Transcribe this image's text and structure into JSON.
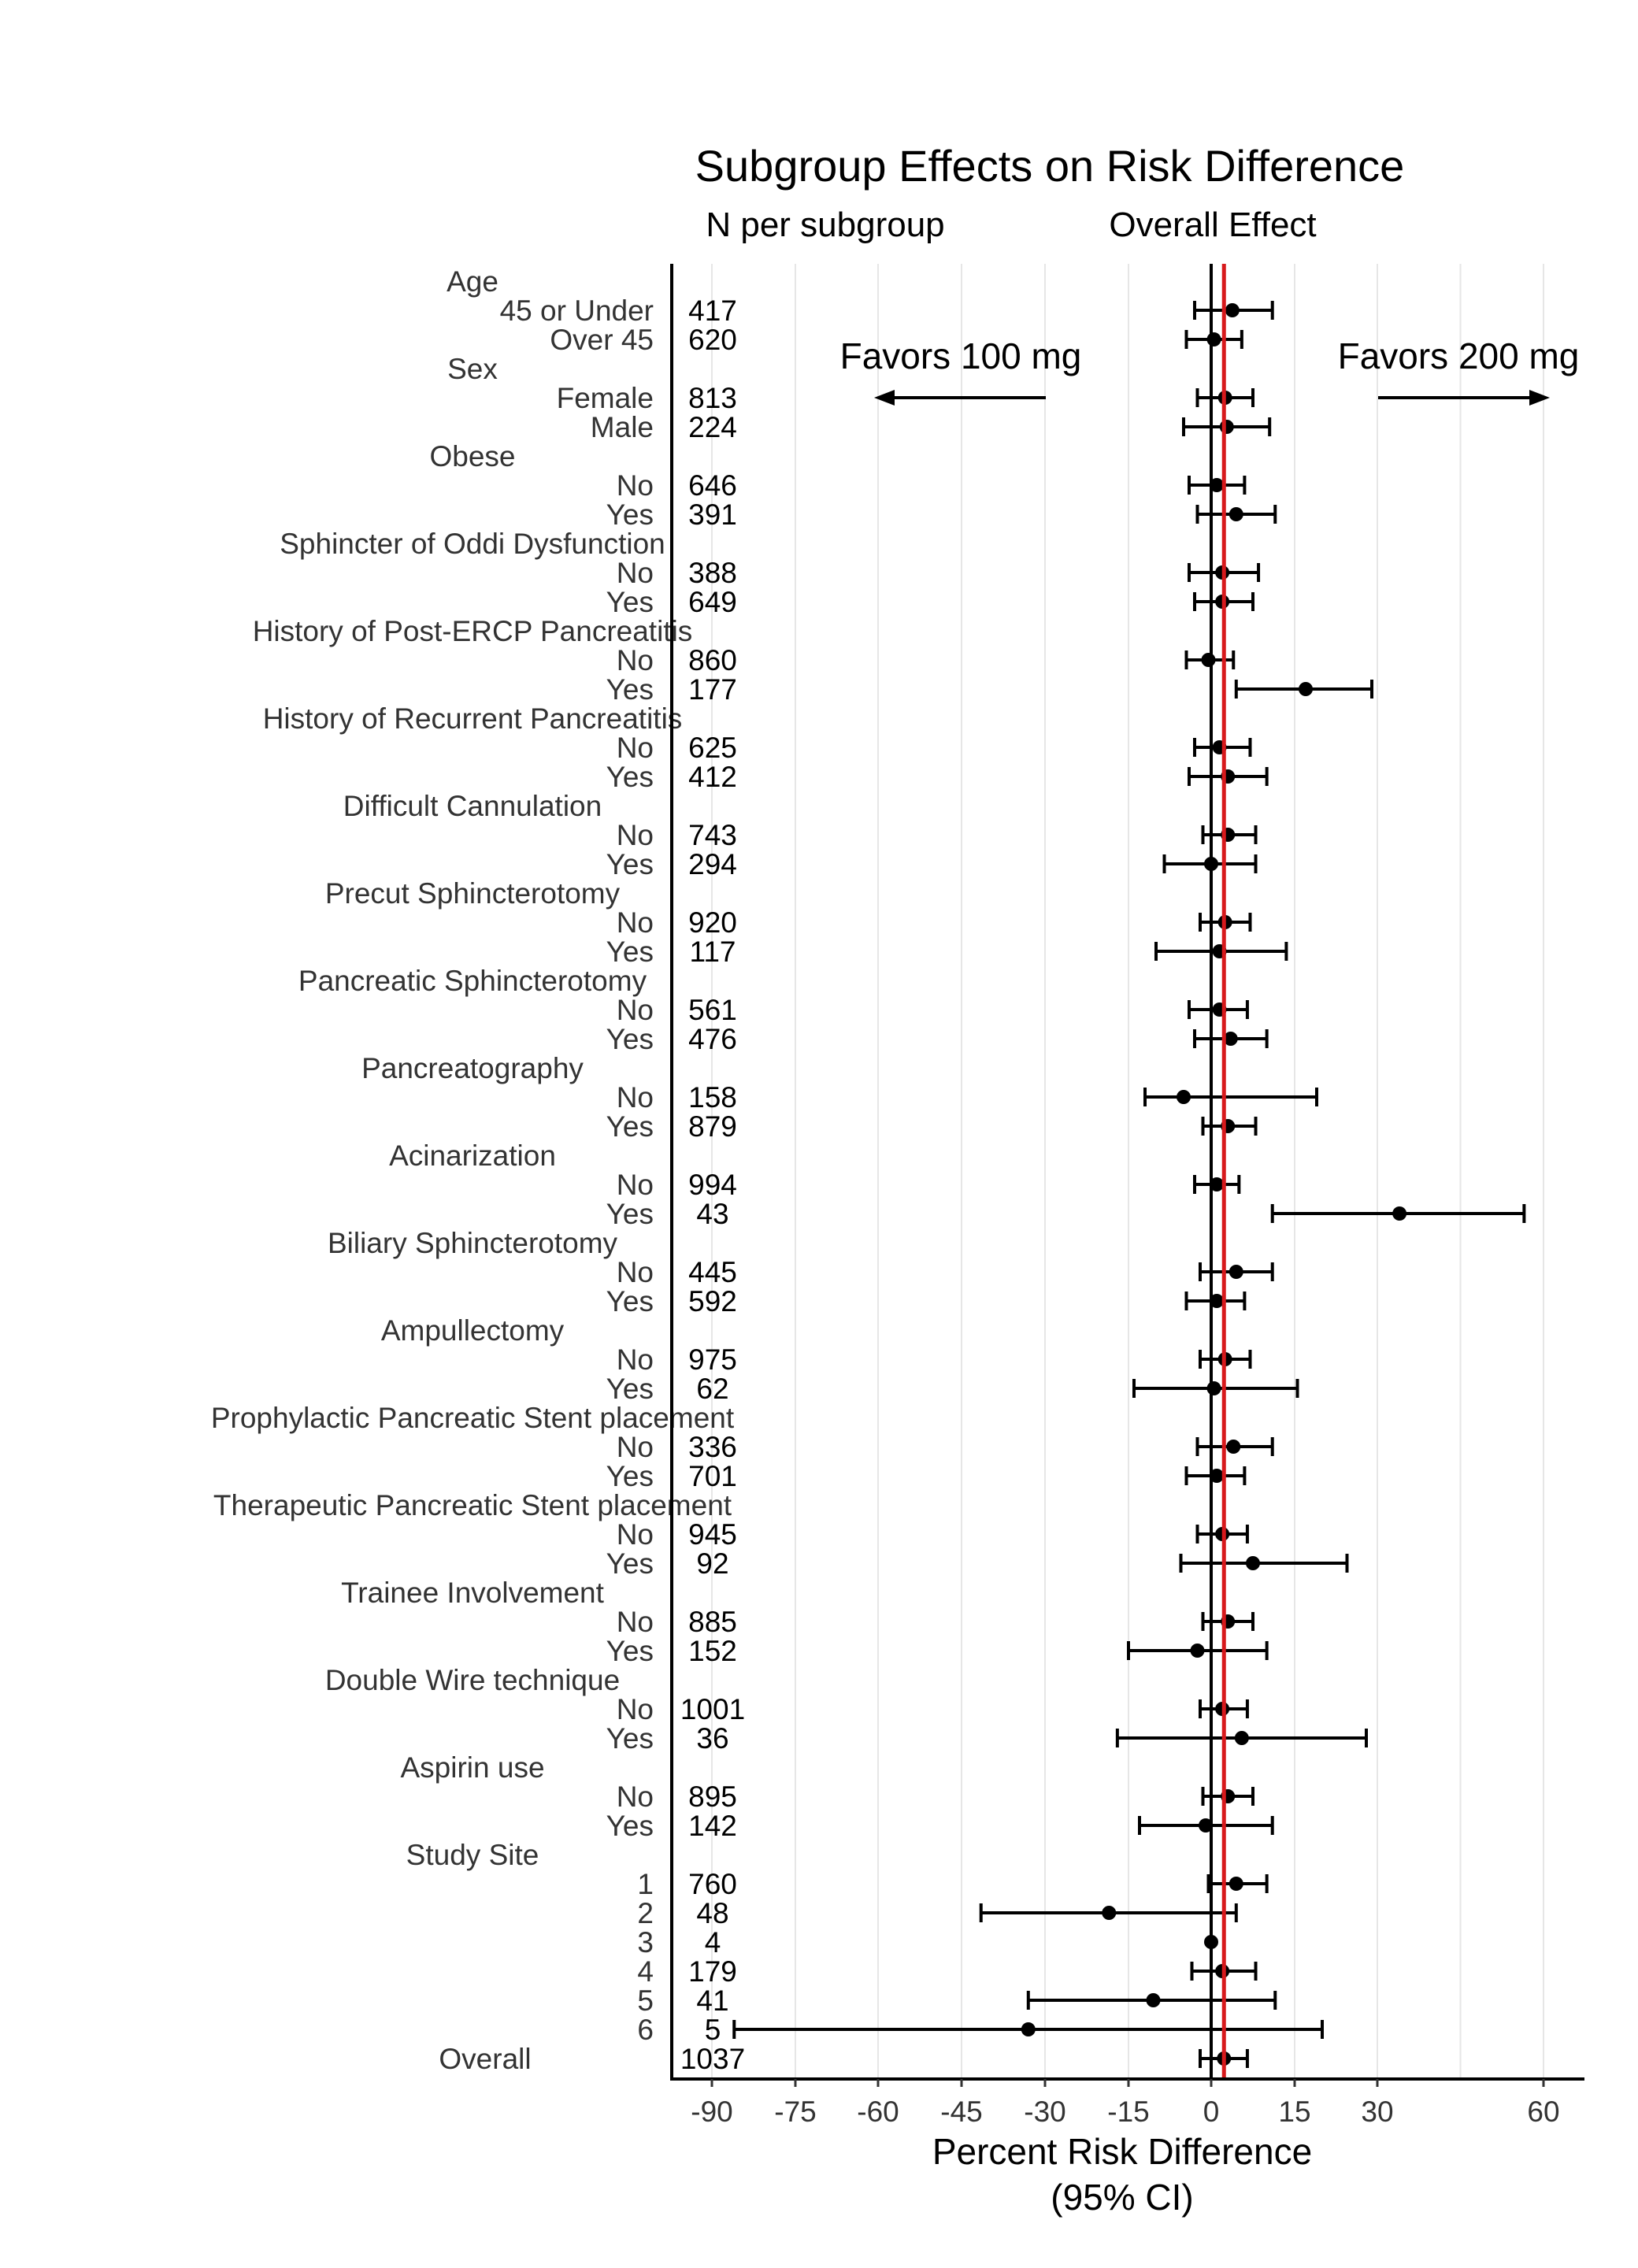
{
  "chart_data": {
    "type": "forest",
    "title": "Subgroup Effects on Risk Difference",
    "n_header": "N per subgroup",
    "overall_header": "Overall Effect",
    "xlabel_line1": "Percent Risk Difference",
    "xlabel_line2": "(95% CI)",
    "favors_left": "Favors 100 mg",
    "favors_right": "Favors 200 mg",
    "x_ticks": [
      -90,
      -75,
      -60,
      -45,
      -30,
      -15,
      0,
      15,
      30,
      60
    ],
    "x_tick_labels": [
      "-90",
      "-75",
      "-60",
      "-45",
      "-30",
      "-15",
      "0",
      "15",
      "30",
      "60"
    ],
    "overall_effect": 2.3,
    "overall_line_color": "#d7191c",
    "point_color": "#000000",
    "grid": true,
    "rows": [
      {
        "label": "Age",
        "header": true
      },
      {
        "label": "45 or Under",
        "n": "417",
        "est": 3.8,
        "lo": -3.0,
        "hi": 11.0
      },
      {
        "label": "Over 45",
        "n": "620",
        "est": 0.5,
        "lo": -4.5,
        "hi": 5.5
      },
      {
        "label": "Sex",
        "header": true
      },
      {
        "label": "Female",
        "n": "813",
        "est": 2.5,
        "lo": -2.5,
        "hi": 7.5
      },
      {
        "label": "Male",
        "n": "224",
        "est": 2.8,
        "lo": -5.0,
        "hi": 10.5
      },
      {
        "label": "Obese",
        "header": true
      },
      {
        "label": "No",
        "n": "646",
        "est": 1.0,
        "lo": -4.0,
        "hi": 6.0
      },
      {
        "label": "Yes",
        "n": "391",
        "est": 4.5,
        "lo": -2.5,
        "hi": 11.5
      },
      {
        "label": "Sphincter of Oddi Dysfunction",
        "header": true
      },
      {
        "label": "No",
        "n": "388",
        "est": 2.0,
        "lo": -4.0,
        "hi": 8.5
      },
      {
        "label": "Yes",
        "n": "649",
        "est": 2.0,
        "lo": -3.0,
        "hi": 7.5
      },
      {
        "label": "History of Post-ERCP Pancreatitis",
        "header": true
      },
      {
        "label": "No",
        "n": "860",
        "est": -0.5,
        "lo": -4.5,
        "hi": 4.0
      },
      {
        "label": "Yes",
        "n": "177",
        "est": 17.0,
        "lo": 4.5,
        "hi": 29.0
      },
      {
        "label": "History of Recurrent Pancreatitis",
        "header": true
      },
      {
        "label": "No",
        "n": "625",
        "est": 1.5,
        "lo": -3.0,
        "hi": 7.0
      },
      {
        "label": "Yes",
        "n": "412",
        "est": 3.0,
        "lo": -4.0,
        "hi": 10.0
      },
      {
        "label": "Difficult Cannulation",
        "header": true
      },
      {
        "label": "No",
        "n": "743",
        "est": 3.0,
        "lo": -1.5,
        "hi": 8.0
      },
      {
        "label": "Yes",
        "n": "294",
        "est": 0.0,
        "lo": -8.5,
        "hi": 8.0
      },
      {
        "label": "Precut Sphincterotomy",
        "header": true
      },
      {
        "label": "No",
        "n": "920",
        "est": 2.5,
        "lo": -2.0,
        "hi": 7.0
      },
      {
        "label": "Yes",
        "n": "117",
        "est": 1.5,
        "lo": -10.0,
        "hi": 13.5
      },
      {
        "label": "Pancreatic Sphincterotomy",
        "header": true
      },
      {
        "label": "No",
        "n": "561",
        "est": 1.5,
        "lo": -4.0,
        "hi": 6.5
      },
      {
        "label": "Yes",
        "n": "476",
        "est": 3.5,
        "lo": -3.0,
        "hi": 10.0
      },
      {
        "label": "Pancreatography",
        "header": true
      },
      {
        "label": "No",
        "n": "158",
        "est": -5.0,
        "lo": -12.0,
        "hi": 19.0
      },
      {
        "label": "Yes",
        "n": "879",
        "est": 3.0,
        "lo": -1.5,
        "hi": 8.0
      },
      {
        "label": "Acinarization",
        "header": true
      },
      {
        "label": "No",
        "n": "994",
        "est": 1.0,
        "lo": -3.0,
        "hi": 5.0
      },
      {
        "label": "Yes",
        "n": "43",
        "est": 34.0,
        "lo": 11.0,
        "hi": 56.5
      },
      {
        "label": "Biliary Sphincterotomy",
        "header": true
      },
      {
        "label": "No",
        "n": "445",
        "est": 4.5,
        "lo": -2.0,
        "hi": 11.0
      },
      {
        "label": "Yes",
        "n": "592",
        "est": 1.0,
        "lo": -4.5,
        "hi": 6.0
      },
      {
        "label": "Ampullectomy",
        "header": true
      },
      {
        "label": "No",
        "n": "975",
        "est": 2.5,
        "lo": -2.0,
        "hi": 7.0
      },
      {
        "label": "Yes",
        "n": "62",
        "est": 0.5,
        "lo": -14.0,
        "hi": 15.5
      },
      {
        "label": "Prophylactic Pancreatic Stent placement",
        "header": true
      },
      {
        "label": "No",
        "n": "336",
        "est": 4.0,
        "lo": -2.5,
        "hi": 11.0
      },
      {
        "label": "Yes",
        "n": "701",
        "est": 1.0,
        "lo": -4.5,
        "hi": 6.0
      },
      {
        "label": "Therapeutic Pancreatic Stent placement",
        "header": true
      },
      {
        "label": "No",
        "n": "945",
        "est": 2.0,
        "lo": -2.5,
        "hi": 6.5
      },
      {
        "label": "Yes",
        "n": "92",
        "est": 7.5,
        "lo": -5.5,
        "hi": 24.5
      },
      {
        "label": "Trainee Involvement",
        "header": true
      },
      {
        "label": "No",
        "n": "885",
        "est": 3.0,
        "lo": -1.5,
        "hi": 7.5
      },
      {
        "label": "Yes",
        "n": "152",
        "est": -2.5,
        "lo": -15.0,
        "hi": 10.0
      },
      {
        "label": "Double Wire technique",
        "header": true
      },
      {
        "label": "No",
        "n": "1001",
        "est": 2.0,
        "lo": -2.0,
        "hi": 6.5
      },
      {
        "label": "Yes",
        "n": "36",
        "est": 5.5,
        "lo": -17.0,
        "hi": 28.0
      },
      {
        "label": "Aspirin use",
        "header": true
      },
      {
        "label": "No",
        "n": "895",
        "est": 3.0,
        "lo": -1.5,
        "hi": 7.5
      },
      {
        "label": "Yes",
        "n": "142",
        "est": -1.0,
        "lo": -13.0,
        "hi": 11.0
      },
      {
        "label": "Study Site",
        "header": true
      },
      {
        "label": "1",
        "n": "760",
        "est": 4.5,
        "lo": -0.5,
        "hi": 10.0
      },
      {
        "label": "2",
        "n": "48",
        "est": -18.5,
        "lo": -41.5,
        "hi": 4.5
      },
      {
        "label": "3",
        "n": "4",
        "est": 0.0,
        "lo": 0.0,
        "hi": 0.0
      },
      {
        "label": "4",
        "n": "179",
        "est": 2.0,
        "lo": -3.5,
        "hi": 8.0
      },
      {
        "label": "5",
        "n": "41",
        "est": -10.5,
        "lo": -33.0,
        "hi": 11.5
      },
      {
        "label": "6",
        "n": "5",
        "est": -33.0,
        "lo": -86.0,
        "hi": 20.0
      },
      {
        "label": "Overall",
        "n": "1037",
        "est": 2.3,
        "lo": -2.0,
        "hi": 6.5,
        "overall": true
      }
    ]
  }
}
